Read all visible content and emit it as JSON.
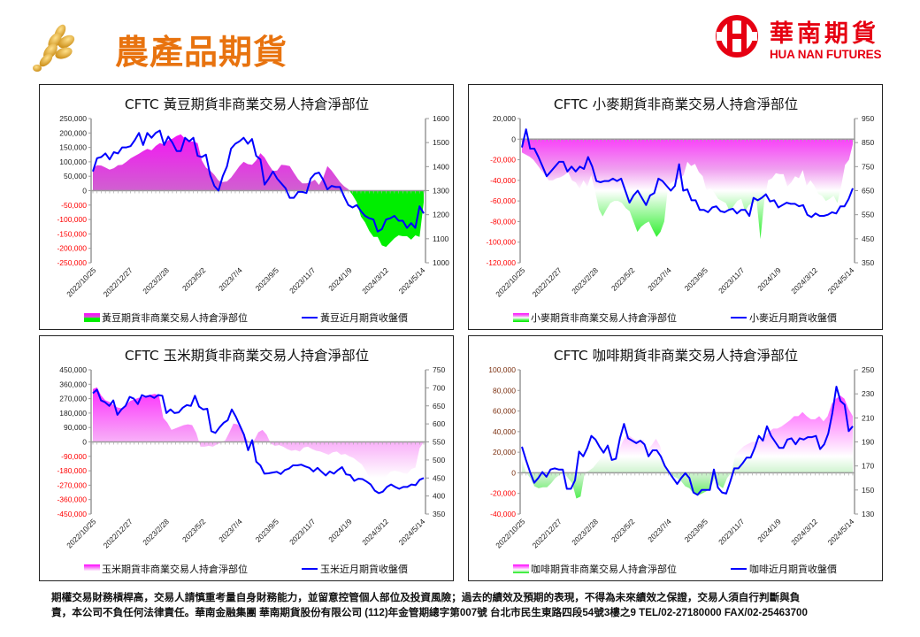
{
  "header": {
    "title": "農產品期貨",
    "logo_cn": "華南期貨",
    "logo_en": "HUA NAN FUTURES"
  },
  "footer": {
    "line1": "期權交易財務槓桿高，交易人請慎重考量自身財務能力，並留意控管個人部位及投資風險；過去的績效及預期的表現，不得為未來績效之保證，交易人須自行判斷與負",
    "line2": "責，本公司不負任何法律責任。華南金融集團  華南期貨股份有限公司 (112)年金管期總字第007號  台北市民生東路四段54號3樓之9  TEL/02-27180000 FAX/02-25463700"
  },
  "colors": {
    "title_orange": "#e8730f",
    "brand_red": "#e60012",
    "price_line": "#0000ff",
    "positive_fill": "#ff00ff",
    "negative_fill": "#00ee00",
    "negative_label": "#ff0000"
  },
  "chart_data": [
    {
      "type": "area+line",
      "title": "CFTC 黃豆期貨非商業交易人持倉淨部位",
      "x_ticks": [
        "2022/10/25",
        "2022/12/27",
        "2023/2/28",
        "2023/5/2",
        "2023/7/4",
        "2023/9/5",
        "2023/11/7",
        "2024/1/9",
        "2024/3/12",
        "2024/5/14"
      ],
      "y_left": {
        "ticks": [
          "250,000",
          "200,000",
          "150,000",
          "100,000",
          "50,000",
          "0",
          "-50,000",
          "-100,000",
          "-150,000",
          "-200,000",
          "-250,000"
        ],
        "range": [
          -250000,
          250000
        ]
      },
      "y_right": {
        "ticks": [
          "1600",
          "1500",
          "1400",
          "1300",
          "1200",
          "1100",
          "1000"
        ],
        "range": [
          1000,
          1600
        ]
      },
      "series": [
        {
          "name": "黃豆期貨非商業交易人持倉淨部位",
          "unit": "contracts(thousands)",
          "values": [
            75,
            88,
            87,
            80,
            73,
            78,
            88,
            90,
            100,
            112,
            120,
            128,
            137,
            145,
            140,
            155,
            165,
            160,
            175,
            180,
            190,
            195,
            180,
            172,
            170,
            165,
            105,
            80,
            70,
            55,
            35,
            30,
            32,
            45,
            65,
            85,
            100,
            92,
            90,
            105,
            130,
            115,
            90,
            68,
            70,
            90,
            88,
            85,
            62,
            40,
            25,
            25,
            30,
            38,
            20,
            45,
            85,
            70,
            50,
            30,
            15,
            5,
            -15,
            -40,
            -90,
            -110,
            -140,
            -160,
            -160,
            -190,
            -195,
            -180,
            -165,
            -155,
            -158,
            -158,
            -170,
            -155,
            -160,
            -40
          ]
        },
        {
          "name": "黃豆近月期貨收盤價",
          "values": [
            1380,
            1435,
            1440,
            1455,
            1430,
            1460,
            1455,
            1480,
            1480,
            1485,
            1510,
            1540,
            1490,
            1540,
            1520,
            1540,
            1550,
            1490,
            1525,
            1500,
            1465,
            1465,
            1520,
            1505,
            1520,
            1445,
            1440,
            1450,
            1365,
            1320,
            1300,
            1360,
            1400,
            1475,
            1495,
            1505,
            1520,
            1495,
            1515,
            1445,
            1430,
            1325,
            1350,
            1380,
            1350,
            1330,
            1310,
            1270,
            1270,
            1295,
            1295,
            1290,
            1350,
            1370,
            1375,
            1345,
            1305,
            1320,
            1315,
            1315,
            1275,
            1240,
            1230,
            1240,
            1215,
            1195,
            1185,
            1180,
            1130,
            1140,
            1180,
            1185,
            1195,
            1175,
            1175,
            1145,
            1165,
            1145,
            1235,
            1205
          ]
        }
      ],
      "legend": [
        "黃豆期貨非商業交易人持倉淨部位",
        "黃豆近月期貨收盤價"
      ]
    },
    {
      "type": "area+line",
      "title": "CFTC 小麥期貨非商業交易人持倉淨部位",
      "x_ticks": [
        "2022/10/25",
        "2022/12/27",
        "2023/2/28",
        "2023/5/2",
        "2023/7/4",
        "2023/9/5",
        "2023/11/7",
        "2024/1/9",
        "2024/3/12",
        "2024/5/14"
      ],
      "y_left": {
        "ticks": [
          "20,000",
          "0",
          "-20,000",
          "-40,000",
          "-60,000",
          "-80,000",
          "-100,000",
          "-120,000"
        ],
        "range": [
          -120000,
          20000
        ]
      },
      "y_right": {
        "ticks": [
          "950",
          "850",
          "750",
          "650",
          "550",
          "450",
          "350"
        ],
        "range": [
          350,
          950
        ]
      },
      "series": [
        {
          "name": "小麥期貨非商業交易人持倉淨部位",
          "unit": "contracts(thousands)",
          "values": [
            -13,
            -15,
            -17,
            -20,
            -25,
            -30,
            -35,
            -40,
            -40,
            -38,
            -37,
            -35,
            -32,
            -40,
            -42,
            -48,
            -40,
            -46,
            -35,
            -50,
            -68,
            -75,
            -68,
            -62,
            -60,
            -60,
            -62,
            -67,
            -70,
            -80,
            -90,
            -85,
            -82,
            -80,
            -88,
            -95,
            -90,
            -80,
            -45,
            -42,
            -40,
            -38,
            -35,
            -22,
            -26,
            -24,
            -32,
            -36,
            -50,
            -48,
            -52,
            -58,
            -60,
            -62,
            -70,
            -65,
            -60,
            -58,
            -70,
            -64,
            -62,
            -60,
            -97,
            -60,
            -40,
            -38,
            -33,
            -34,
            -34,
            -46,
            -42,
            -36,
            -38,
            -30,
            -45,
            -40,
            -45,
            -53,
            -55,
            -60,
            -58,
            -55,
            -62,
            -45,
            -25,
            -20,
            -5
          ]
        },
        {
          "name": "小麥近月期貨收盤價",
          "values": [
            830,
            905,
            825,
            825,
            790,
            750,
            710,
            730,
            750,
            770,
            770,
            730,
            750,
            730,
            750,
            740,
            790,
            750,
            690,
            685,
            690,
            690,
            700,
            690,
            700,
            650,
            600,
            630,
            650,
            620,
            590,
            630,
            640,
            700,
            690,
            670,
            650,
            670,
            760,
            650,
            655,
            610,
            610,
            570,
            570,
            560,
            580,
            585,
            565,
            560,
            570,
            575,
            555,
            570,
            570,
            545,
            620,
            610,
            620,
            635,
            605,
            610,
            580,
            590,
            600,
            595,
            595,
            585,
            590,
            550,
            540,
            555,
            545,
            545,
            550,
            560,
            555,
            585,
            585,
            615,
            660
          ]
        }
      ],
      "legend": [
        "小麥期貨非商業交易人持倉淨部位",
        "小麥近月期貨收盤價"
      ]
    },
    {
      "type": "area+line",
      "title": "CFTC 玉米期貨非商業交易人持倉淨部位",
      "x_ticks": [
        "2022/10/25",
        "2022/12/27",
        "2023/2/28",
        "2023/5/2",
        "2023/7/4",
        "2023/9/5",
        "2023/11/7",
        "2024/1/9",
        "2024/3/12",
        "2024/5/14"
      ],
      "y_left": {
        "ticks": [
          "450,000",
          "360,000",
          "270,000",
          "180,000",
          "90,000",
          "0",
          "-90,000",
          "-180,000",
          "-270,000",
          "-360,000",
          "-450,000"
        ],
        "range": [
          -450000,
          450000
        ]
      },
      "y_right": {
        "ticks": [
          "750",
          "700",
          "650",
          "600",
          "550",
          "500",
          "450",
          "400",
          "350"
        ],
        "range": [
          350,
          750
        ]
      },
      "series": [
        {
          "name": "玉米期貨非商業交易人持倉淨部位",
          "unit": "contracts(thousands)",
          "values": [
            330,
            340,
            290,
            260,
            250,
            230,
            215,
            210,
            230,
            255,
            265,
            275,
            280,
            290,
            295,
            300,
            290,
            150,
            120,
            75,
            85,
            95,
            105,
            110,
            105,
            55,
            -30,
            -30,
            -25,
            -30,
            -15,
            -5,
            10,
            60,
            115,
            110,
            75,
            25,
            -10,
            10,
            60,
            75,
            45,
            -10,
            -25,
            -20,
            -30,
            -45,
            -55,
            -50,
            -60,
            -35,
            -30,
            -45,
            -55,
            -60,
            -70,
            -80,
            -65,
            -60,
            -80,
            -75,
            -90,
            -100,
            -120,
            -140,
            -180,
            -230,
            -240,
            -260,
            -230,
            -215,
            -185,
            -180,
            -185,
            -195,
            -200,
            -170,
            -160,
            -40,
            0
          ]
        },
        {
          "name": "玉米近月期貨收盤價",
          "values": [
            685,
            695,
            665,
            660,
            650,
            665,
            625,
            640,
            650,
            675,
            670,
            655,
            680,
            675,
            678,
            672,
            680,
            678,
            630,
            640,
            630,
            632,
            645,
            652,
            650,
            678,
            648,
            640,
            642,
            580,
            575,
            590,
            603,
            610,
            640,
            620,
            595,
            570,
            527,
            555,
            495,
            485,
            462,
            463,
            465,
            467,
            461,
            472,
            476,
            485,
            485,
            487,
            482,
            478,
            468,
            478,
            467,
            457,
            468,
            462,
            472,
            480,
            460,
            458,
            442,
            448,
            447,
            440,
            432,
            415,
            408,
            412,
            425,
            432,
            425,
            420,
            425,
            425,
            432,
            430,
            445,
            450
          ]
        }
      ],
      "legend": [
        "玉米期貨非商業交易人持倉淨部位",
        "玉米近月期貨收盤價"
      ]
    },
    {
      "type": "area+line",
      "title": "CFTC 咖啡期貨非商業交易人持倉淨部位",
      "x_ticks": [
        "2022/10/25",
        "2022/12/27",
        "2023/2/28",
        "2023/5/2",
        "2023/7/4",
        "2023/9/5",
        "2023/11/7",
        "2024/1/9",
        "2024/3/12",
        "2024/5/14"
      ],
      "y_left": {
        "ticks": [
          "100,000",
          "80,000",
          "60,000",
          "40,000",
          "20,000",
          "0",
          "-20,000",
          "-40,000"
        ],
        "range": [
          -40000,
          100000
        ]
      },
      "y_right": {
        "ticks": [
          "250",
          "230",
          "210",
          "190",
          "170",
          "150",
          "130"
        ],
        "range": [
          130,
          250
        ]
      },
      "series": [
        {
          "name": "咖啡期貨非商業交易人持倉淨部位",
          "unit": "contracts(thousands)",
          "values": [
            13,
            0,
            -5,
            -13,
            -15,
            -14,
            -14,
            -10,
            -5,
            -2,
            0,
            -5,
            -10,
            -25,
            -23,
            0,
            2,
            5,
            10,
            15,
            16,
            13,
            16,
            20,
            30,
            37,
            35,
            32,
            31,
            32,
            22,
            27,
            33,
            26,
            10,
            0,
            -3,
            -5,
            -8,
            -13,
            -15,
            -20,
            -22,
            -20,
            -18,
            -15,
            -5,
            -12,
            -15,
            -5,
            0,
            18,
            22,
            26,
            28,
            30,
            30,
            32,
            35,
            40,
            43,
            43,
            45,
            48,
            51,
            55,
            55,
            59,
            55,
            52,
            52,
            55,
            50,
            55,
            67,
            72,
            75,
            72,
            62,
            55
          ]
        },
        {
          "name": "咖啡近月期貨收盤價",
          "values": [
            186,
            175,
            165,
            156,
            160,
            165,
            161,
            167,
            168,
            167,
            167,
            151,
            151,
            158,
            182,
            178,
            185,
            195,
            192,
            186,
            181,
            187,
            175,
            176,
            193,
            205,
            193,
            191,
            189,
            191,
            188,
            178,
            183,
            183,
            178,
            170,
            165,
            160,
            155,
            160,
            164,
            160,
            148,
            146,
            150,
            150,
            150,
            167,
            152,
            148,
            147,
            157,
            168,
            168,
            172,
            177,
            177,
            185,
            195,
            191,
            203,
            195,
            190,
            185,
            185,
            192,
            193,
            188,
            193,
            192,
            194,
            194,
            195,
            184,
            188,
            197,
            214,
            236,
            224,
            221,
            199,
            203
          ]
        }
      ],
      "legend": [
        "咖啡期貨非商業交易人持倉淨部位",
        "咖啡近月期貨收盤價"
      ]
    }
  ]
}
